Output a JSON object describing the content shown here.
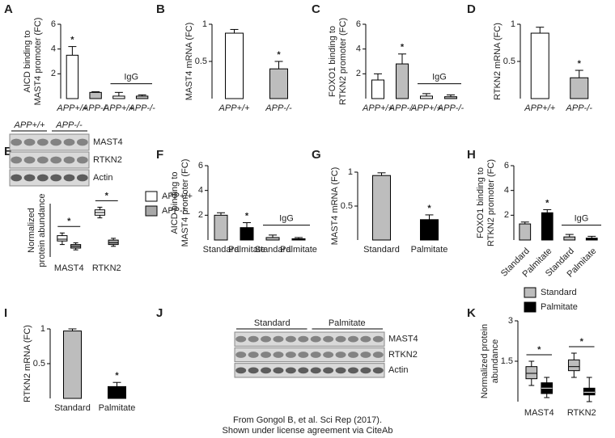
{
  "chart_data": [
    {
      "label": "A",
      "type": "bar",
      "ylabel": [
        "AICD binding to",
        "MAST4 promoter (FC)"
      ],
      "categories": [
        "APP+/+",
        "APP-/-",
        "APP+/+",
        "APP-/-"
      ],
      "values": [
        3.5,
        0.5,
        0.2,
        0.2
      ],
      "errors": [
        0.7,
        0.05,
        0.3,
        0.1
      ],
      "colors": [
        "#ffffff",
        "#bdbdbd",
        "#ffffff",
        "#bdbdbd"
      ],
      "annotations": [
        "*",
        null,
        null,
        null
      ],
      "group_label": "IgG",
      "ylim": [
        0,
        6
      ],
      "yticks": [
        2,
        4,
        6
      ]
    },
    {
      "label": "B",
      "type": "bar",
      "ylabel": [
        "MAST4 mRNA (FC)"
      ],
      "categories": [
        "APP+/+",
        "APP-/-"
      ],
      "values": [
        0.88,
        0.4
      ],
      "errors": [
        0.05,
        0.1
      ],
      "colors": [
        "#ffffff",
        "#bdbdbd"
      ],
      "annotations": [
        null,
        "*"
      ],
      "ylim": [
        0,
        1
      ],
      "yticks": [
        0.5,
        1
      ]
    },
    {
      "label": "C",
      "type": "bar",
      "ylabel": [
        "FOXO1 binding to",
        "RTKN2 promoter (FC)"
      ],
      "categories": [
        "APP+/+",
        "APP-/-",
        "APP+/+",
        "APP-/-"
      ],
      "values": [
        1.5,
        2.8,
        0.2,
        0.15
      ],
      "errors": [
        0.5,
        0.8,
        0.2,
        0.15
      ],
      "colors": [
        "#ffffff",
        "#bdbdbd",
        "#ffffff",
        "#bdbdbd"
      ],
      "annotations": [
        null,
        "*",
        null,
        null
      ],
      "group_label": "IgG",
      "ylim": [
        0,
        6
      ],
      "yticks": [
        2,
        4,
        6
      ]
    },
    {
      "label": "D",
      "type": "bar",
      "ylabel": [
        "RTKN2 mRNA (FC)"
      ],
      "categories": [
        "APP+/+",
        "APP-/-"
      ],
      "values": [
        0.88,
        0.28
      ],
      "errors": [
        0.08,
        0.1
      ],
      "colors": [
        "#ffffff",
        "#bdbdbd"
      ],
      "annotations": [
        null,
        "*"
      ],
      "ylim": [
        0,
        1
      ],
      "yticks": [
        0.5,
        1
      ]
    },
    {
      "label": "E",
      "type": "blot",
      "groups": [
        "APP+/+",
        "APP-/-"
      ],
      "bands": [
        "MAST4",
        "RTKN2",
        "Actin"
      ]
    },
    {
      "type": "box",
      "ylabel": [
        "Normalized",
        "protein abundance"
      ],
      "categories": [
        "MAST4",
        "RTKN2"
      ],
      "annotations": [
        "*",
        "*"
      ],
      "ylim": [
        0,
        3
      ],
      "series": [
        {
          "name": "APP+/+",
          "color": "#ffffff",
          "boxes": [
            [
              0.7,
              0.9,
              1.0,
              1.2,
              1.35
            ],
            [
              2.2,
              2.35,
              2.5,
              2.65,
              2.8
            ]
          ]
        },
        {
          "name": "APP-/-",
          "color": "#a8a8a8",
          "boxes": [
            [
              0.4,
              0.5,
              0.6,
              0.7,
              0.8
            ],
            [
              0.6,
              0.7,
              0.8,
              0.95,
              1.05
            ]
          ]
        }
      ]
    },
    {
      "label": "F",
      "type": "bar",
      "ylabel": [
        "AICD binding to",
        "MAST4 promoter (FC)"
      ],
      "categories": [
        "Standard",
        "Palmitate",
        "Standard",
        "Palmitate"
      ],
      "values": [
        2.0,
        1.0,
        0.2,
        0.1
      ],
      "errors": [
        0.2,
        0.4,
        0.2,
        0.1
      ],
      "colors": [
        "#bdbdbd",
        "#000000",
        "#bdbdbd",
        "#000000"
      ],
      "annotations": [
        null,
        "*",
        null,
        null
      ],
      "group_label": "IgG",
      "ylim": [
        0,
        6
      ],
      "yticks": [
        2,
        4,
        6
      ]
    },
    {
      "label": "G",
      "type": "bar",
      "ylabel": [
        "MAST4 mRNA (FC)"
      ],
      "categories": [
        "Standard",
        "Palmitate"
      ],
      "values": [
        0.95,
        0.3
      ],
      "errors": [
        0.04,
        0.07
      ],
      "colors": [
        "#bdbdbd",
        "#000000"
      ],
      "annotations": [
        null,
        "*"
      ],
      "ylim": [
        0,
        1
      ],
      "yticks": [
        0.5,
        1
      ]
    },
    {
      "label": "H",
      "type": "bar",
      "ylabel": [
        "FOXO1 binding to",
        "RTKN2 promoter (FC)"
      ],
      "categories": [
        "Standard",
        "Palmitate",
        "Standard",
        "Palmitate"
      ],
      "values": [
        1.3,
        2.2,
        0.25,
        0.15
      ],
      "errors": [
        0.15,
        0.25,
        0.2,
        0.15
      ],
      "colors": [
        "#bdbdbd",
        "#000000",
        "#bdbdbd",
        "#000000"
      ],
      "annotations": [
        null,
        "*",
        null,
        null
      ],
      "group_label": "IgG",
      "ylim": [
        0,
        6
      ],
      "yticks": [
        2,
        4,
        6
      ]
    },
    {
      "label": "I",
      "type": "bar",
      "ylabel": [
        "RTKN2 mRNA (FC)"
      ],
      "categories": [
        "Standard",
        "Palmitate"
      ],
      "values": [
        0.97,
        0.17
      ],
      "errors": [
        0.03,
        0.06
      ],
      "colors": [
        "#bdbdbd",
        "#000000"
      ],
      "annotations": [
        null,
        "*"
      ],
      "ylim": [
        0,
        1
      ],
      "yticks": [
        0.5,
        1
      ]
    },
    {
      "label": "J",
      "type": "blot",
      "groups": [
        "Standard",
        "Palmitate"
      ],
      "bands": [
        "MAST4",
        "RTKN2",
        "Actin"
      ]
    },
    {
      "label": "K",
      "type": "box",
      "ylabel": [
        "Normalized protein",
        "abundance"
      ],
      "categories": [
        "MAST4",
        "RTKN2"
      ],
      "annotations": [
        "*",
        "*"
      ],
      "ylim": [
        0,
        3
      ],
      "yticks": [
        1.5,
        3
      ],
      "series": [
        {
          "name": "Standard",
          "color": "#bdbdbd",
          "boxes": [
            [
              0.6,
              0.85,
              1.05,
              1.3,
              1.5
            ],
            [
              0.9,
              1.15,
              1.3,
              1.55,
              1.8
            ]
          ]
        },
        {
          "name": "Palmitate",
          "color": "#000000",
          "boxes": [
            [
              0.15,
              0.3,
              0.5,
              0.7,
              0.9
            ],
            [
              0,
              0.25,
              0.35,
              0.5,
              0.9
            ]
          ]
        }
      ]
    }
  ],
  "footer": [
    "From Gongol B, et al. Sci Rep (2017).",
    "Shown under license agreement via CiteAb"
  ]
}
